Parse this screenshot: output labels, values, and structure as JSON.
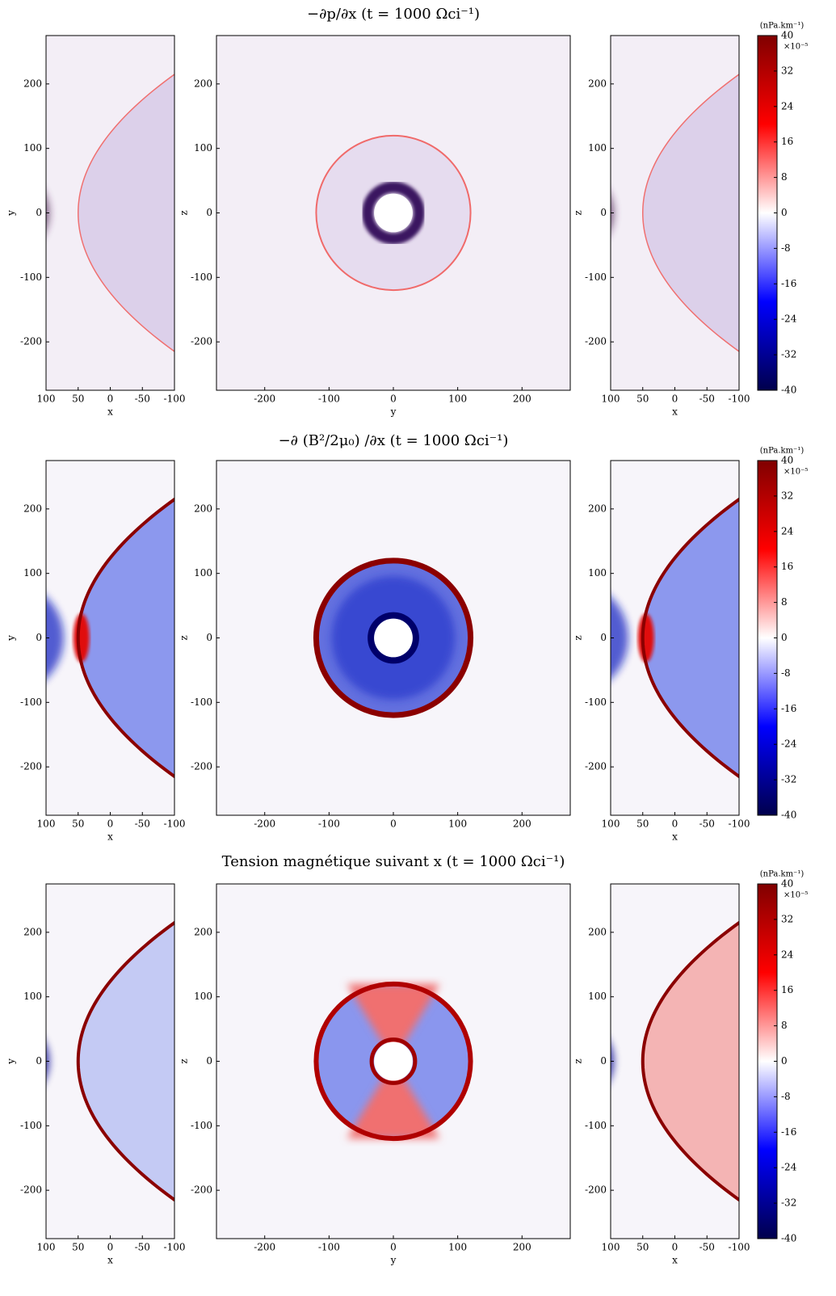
{
  "chart_data": [
    {
      "type": "heatmap",
      "title": "−∂p/∂x (t = 1000 Ωci⁻¹)",
      "panels": [
        {
          "xlabel": "x",
          "ylabel": "y",
          "xlim": [
            100,
            -100
          ],
          "ylim": [
            -275,
            275
          ],
          "xticks": [
            100,
            50,
            0,
            -50,
            -100
          ],
          "yticks": [
            -200,
            -100,
            0,
            100,
            200
          ]
        },
        {
          "xlabel": "y",
          "ylabel": "z",
          "xlim": [
            -275,
            275
          ],
          "ylim": [
            -275,
            275
          ],
          "xticks": [
            -200,
            -100,
            0,
            100,
            200
          ],
          "yticks": [
            -200,
            -100,
            0,
            100,
            200
          ]
        },
        {
          "xlabel": "x",
          "ylabel": "z",
          "xlim": [
            100,
            -100
          ],
          "ylim": [
            -275,
            275
          ],
          "xticks": [
            100,
            50,
            0,
            -50,
            -100
          ],
          "yticks": [
            -200,
            -100,
            0,
            100,
            200
          ]
        }
      ],
      "colorbar": {
        "label": "(nPa.km⁻¹)",
        "multiplier": "×10⁻⁵",
        "lim": [
          -40,
          40
        ],
        "ticks": [
          40,
          32,
          24,
          16,
          8,
          0,
          -8,
          -16,
          -24,
          -32,
          -40
        ],
        "colors": [
          "#00004c",
          "#0000ff",
          "#ffffff",
          "#ff0000",
          "#800000"
        ]
      }
    },
    {
      "type": "heatmap",
      "title": "−∂ (B²/2μ₀) /∂x (t = 1000 Ωci⁻¹)",
      "panels": [
        {
          "xlabel": "x",
          "ylabel": "y",
          "xlim": [
            100,
            -100
          ],
          "ylim": [
            -275,
            275
          ],
          "xticks": [
            100,
            50,
            0,
            -50,
            -100
          ],
          "yticks": [
            -200,
            -100,
            0,
            100,
            200
          ]
        },
        {
          "ylabel": "z",
          "xlim": [
            -275,
            275
          ],
          "ylim": [
            -275,
            275
          ],
          "xticks": [
            -200,
            -100,
            0,
            100,
            200
          ],
          "yticks": [
            -200,
            -100,
            0,
            100,
            200
          ]
        },
        {
          "xlabel": "x",
          "ylabel": "z",
          "xlim": [
            100,
            -100
          ],
          "ylim": [
            -275,
            275
          ],
          "xticks": [
            100,
            50,
            0,
            -50,
            -100
          ],
          "yticks": [
            -200,
            -100,
            0,
            100,
            200
          ]
        }
      ],
      "colorbar": {
        "label": "(nPa.km⁻¹)",
        "multiplier": "×10⁻⁵",
        "lim": [
          -40,
          40
        ],
        "ticks": [
          40,
          32,
          24,
          16,
          8,
          0,
          -8,
          -16,
          -24,
          -32,
          -40
        ],
        "colors": [
          "#00004c",
          "#0000ff",
          "#ffffff",
          "#ff0000",
          "#800000"
        ]
      }
    },
    {
      "type": "heatmap",
      "title": "Tension magnétique suivant x (t = 1000 Ωci⁻¹)",
      "panels": [
        {
          "xlabel": "x",
          "ylabel": "y",
          "xlim": [
            100,
            -100
          ],
          "ylim": [
            -275,
            275
          ],
          "xticks": [
            100,
            50,
            0,
            -50,
            -100
          ],
          "yticks": [
            -200,
            -100,
            0,
            100,
            200
          ]
        },
        {
          "xlabel": "y",
          "ylabel": "z",
          "xlim": [
            -275,
            275
          ],
          "ylim": [
            -275,
            275
          ],
          "xticks": [
            -200,
            -100,
            0,
            100,
            200
          ],
          "yticks": [
            -200,
            -100,
            0,
            100,
            200
          ]
        },
        {
          "xlabel": "x",
          "ylabel": "z",
          "xlim": [
            100,
            -100
          ],
          "ylim": [
            -275,
            275
          ],
          "xticks": [
            100,
            50,
            0,
            -50,
            -100
          ],
          "yticks": [
            -200,
            -100,
            0,
            100,
            200
          ]
        }
      ],
      "colorbar": {
        "label": "(nPa.km⁻¹)",
        "multiplier": "×10⁻⁵",
        "lim": [
          -40,
          40
        ],
        "ticks": [
          40,
          32,
          24,
          16,
          8,
          0,
          -8,
          -16,
          -24,
          -32,
          -40
        ],
        "colors": [
          "#00004c",
          "#0000ff",
          "#ffffff",
          "#ff0000",
          "#800000"
        ]
      }
    }
  ]
}
